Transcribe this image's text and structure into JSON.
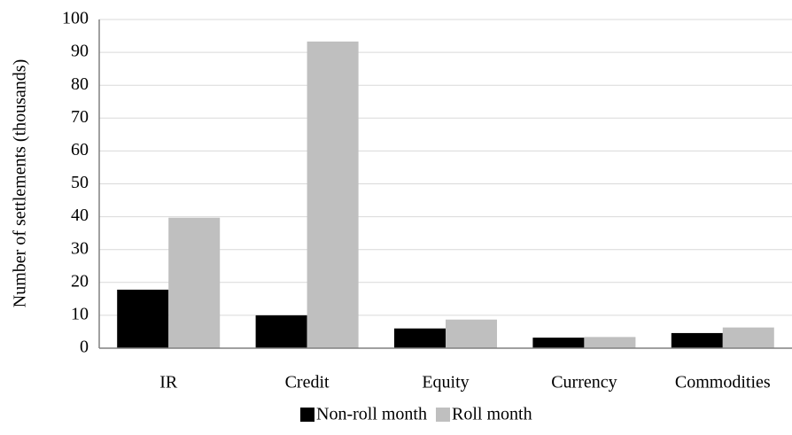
{
  "chart_data": {
    "type": "bar",
    "y_label": "Number of settlements (thousands)",
    "categories": [
      "IR",
      "Credit",
      "Equity",
      "Currency",
      "Commodities"
    ],
    "series": [
      {
        "name": "Non-roll month",
        "color": "#000000",
        "values": [
          17.8,
          10,
          6,
          3.2,
          4.6
        ]
      },
      {
        "name": "Roll month",
        "color": "#bfbfbf",
        "values": [
          39.7,
          93.3,
          8.7,
          3.4,
          6.3
        ]
      }
    ],
    "ylim": [
      0,
      100
    ],
    "yticks": [
      0,
      10,
      20,
      30,
      40,
      50,
      60,
      70,
      80,
      90,
      100
    ],
    "grid": true,
    "legend": "bottom"
  }
}
